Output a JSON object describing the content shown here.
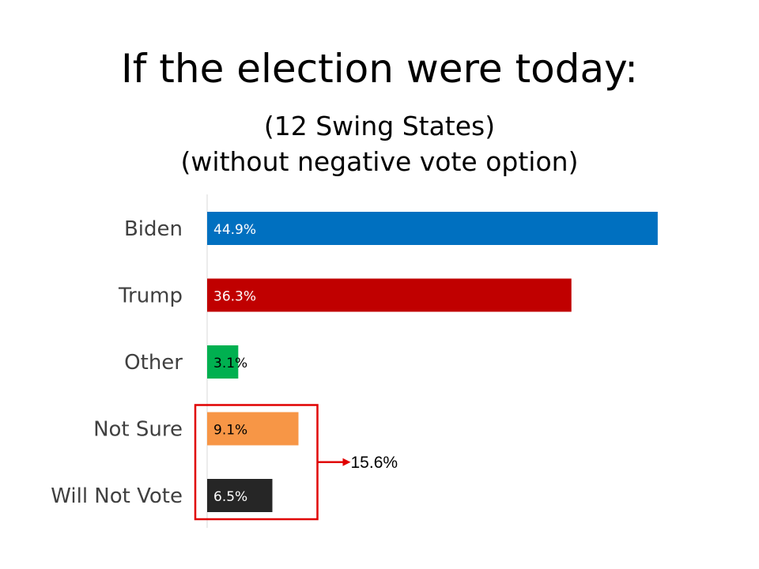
{
  "chart_data": {
    "type": "bar",
    "orientation": "horizontal",
    "title": "If the election were today:",
    "subtitle_lines": [
      "(12 Swing States)",
      "(without negative vote option)"
    ],
    "categories": [
      "Biden",
      "Trump",
      "Other",
      "Not Sure",
      "Will Not Vote"
    ],
    "values": [
      44.9,
      36.3,
      3.1,
      9.1,
      6.5
    ],
    "value_labels": [
      "44.9%",
      "36.3%",
      "3.1%",
      "9.1%",
      "6.5%"
    ],
    "colors": [
      "#0070C0",
      "#C00000",
      "#00B050",
      "#F79646",
      "#262626"
    ],
    "label_colors": [
      "#ffffff",
      "#ffffff",
      "#000000",
      "#000000",
      "#ffffff"
    ],
    "xlim": [
      0,
      52
    ],
    "grid": false,
    "annotation": {
      "text": "15.6%",
      "groups": [
        "Not Sure",
        "Will Not Vote"
      ],
      "box_color": "#E00000"
    }
  }
}
